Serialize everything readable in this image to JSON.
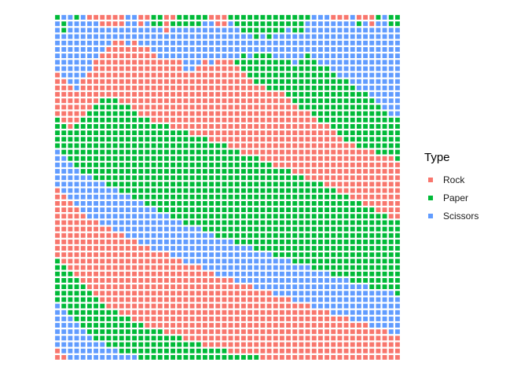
{
  "chart_data": {
    "type": "heatmap",
    "title": "",
    "xlabel": "",
    "ylabel": "",
    "grid": false,
    "legend_position": "right",
    "legend": {
      "title": "Type",
      "entries": [
        {
          "label": "Rock",
          "color": "#F8766D"
        },
        {
          "label": "Paper",
          "color": "#00BA38"
        },
        {
          "label": "Scissors",
          "color": "#619CFF"
        }
      ]
    },
    "rows": 54,
    "cols": 54,
    "cells": [
      "PSSPSRRRRRRSSRRPPRRPPPPPRRRPPPPPPPPPPPPPSSSRRRSRRRPSPP",
      "SPSSSSSRRRRSSRSPPRPPPPPSSRRSPPPPPPPPPPPSSSSSSSSPSRSSPP",
      "SPSSSSSSSSSSSSSSSRSSSSSSSSSSSPPPPPPPSPPSSSSSSSSSSSSSSS",
      "SSSSSSSSSSSSSSSSSSSSSSSSSSSSSSSPSPSSSSSSSSSSSSSSSSSSSS",
      "SSSSSSSSSRRSRSSSSSSSSSSSSSSSSSSSSSSSSSSSSSSSSSSSSSSSSS",
      "SSSSSSSSRRRRRRRSSSSSSSSSSSSSSSSSSSSSSSSSSSSSSSSSSSSSSS",
      "SSSSSSSRRRRRRRRRSSSSSSSSSSSSSPSPPPSSSSSPSSSSSSSSSSSSSS",
      "SSSSSSRRRRRRRRRRRRRRSSSRSRRRPPPPPPPPPSPPPSSSSSSSSSSSSS",
      "SSSSSSRRRRRRRRRRRRRRSSRRRRRRRPPPPPPPPPPPPPPSSSSSSSSSSS",
      "RSSSSRRRRRRRRRRRRRRRRRRRRRRRRRPPPPPPPPPPPPPPSSSSSSSSSS",
      "RRSSRRRRRRRRRRRRRRRRRRRRRRRRRRRPPPPPPPPPPPPPPPSSSSSSSS",
      "RRRSRRRRRRRRRRRRRRRRRRRRRRRRRRRRRPPPPPPPPPPPPPPSSSSSSS",
      "RRRRRRRRRRRRRRRRRRRRRRRRRRRRRRRRRRRRPPPPPPPPPPPPPSSSSS",
      "RRRRRRRPPPRRRRRRRRRRRRRRRRRRRRRRRRRRRPPPPPPPPPPPPPSSSS",
      "RRRRRRPPPPPPRRRRRRRRRRRRRRRRRRRRRRRRRRPPPPPPPPPPPPPSSS",
      "RRRRRPPPPPPPPRRRRRRRRRRRRRRRRRRRRRRRRRRRPPPPPPPPPPPPSS",
      "PRRRPPPPPPPPPPPRRRRRRRRRRRRRRRRRRRRRRRRRRPPPPPPPPPPPPP",
      "PPRPPPPPPPPPPPPPPPRRRRRRRRRRRRRRRRRRRRRRRRRPPPPPPPPPPP",
      "PPPPPPPPPPPPPPPPPPPPPRRRRRRRRRRRRRRRRRRRRRRRPPPPPPPPPP",
      "PPPPPPPPPPPPPPPPPPPPPPPPRRRRRRRRRRRRRRRRRRRRRPPPPPPPPP",
      "PPPPPPPPPPPPPPPPPPPPPPPPPPPRRRRRRRRRRRRRRRRRRRRPPPPPPP",
      "SPPPPPPPPPPPPPPPPPPPPPPPPPPPPRRRRRRRRRRRRRRRRRRRRRPPPP",
      "SSPPPPPPPPPPPPPPPPPPPPPPPPPPPPPPRRRRRRRRRRRRRRRRRRRRRP",
      "SSSPPPPPPPPPPPPPPPPPPPPPPPPPPPPPPPRRRRRRRRRRRRRRRRRRRR",
      "SSSSPPPPPPPPPPPPPPPPPPPPPPPPPPPPPPPPPRRRRRRRRRRRRRRRRR",
      "SSSSSSPPPPPPPPPPPPPPPPPPPPPPPPPPPPPPPPPRRRRRRRRRRRRRRR",
      "SSSSSSSSPPPPPPPPPPPPPPPPPPPPPPPPPPPPPPPPPPRRRRRRRRRRRR",
      "RSSSSSSSSSPPPPPPPPPPPPPPPPPPPPPPPPPPPPPPPPPPRRRRRRRRRR",
      "RRSSSSSSSSSSPPPPPPPPPPPPPPPPPPPPPPPPPPPPPPPPPPRRRRRRRR",
      "RRRSSSSSSSSSSSPPPPPPPPPPPPPPPPPPPPPPPPPPPPPPPPPPRRRRRR",
      "RRRRSSSSSSSSSSSSPPPPPPPPPPPPPPPPPPPPPPPPPPPPPPPPPPRRRR",
      "RRRRRSSSSSSSSSSSSSPPPPPPPPPPPPPPPPPPPPPPPPPPPPPPPPPPRR",
      "RRRRRRRSSSSSSSSSSSSSPPPPPPPPPPPPPPPPPPPPPPPPPPPPPPPPPP",
      "RRRRRRRRRSSSSSSSSSSSSSSPPPPPPPPPPPPPPPPPPPPPPPPPPPPPPP",
      "RRRRRRRRRRRSSSSSSSSSSSSSSPPPPPPPPPPPPPPPPPPPPPPPPPPPPP",
      "RRRRRRRRRRRRRSSSSSSSSSSSSSSSPPPPPPPPPPPPPPPPPPPPPPPPPP",
      "RRRRRRRRRRRRRRRSSSSSSSSSSSSSSSSPPPPPPPPPPPPPPPPPPPPPPP",
      "RRRRRRRRRRRRRRRRRRSSSSSSSSSSSSSSSSPPPPPPPPPPPPPPPPPPPP",
      "PRRRRRRRRRRRRRRRRRRRSSSSSSSSSSSSSSSSSPPPPPPPPPPPPPPPPP",
      "PPRRRRRRRRRRRRRRRRRRRRRSSSSSSSSSSSSSSSSSPPPPPPPPPPPPPP",
      "PPPRRRRRRRRRRRRRRRRRRRRRRSSSSSSSSSSSSSSSSSSPPPPPPPPPPP",
      "PPPPRRRRRRRRRRRRRRRRRRRRRRRRSSSSSSSSSSSSSSSSSSPPPPPPPP",
      "PPPPPRRRRRRRRRRRRRRRRRRRRRRRRRRSSSSSSSSSSSSSSSSSSPPPPP",
      "PPPPPPRRRRRRRRRRRRRRRRRRRRRRRRRRRRSSSSSSSSSSSSSSSSSSSP",
      "PPPPPPPRRRRRRRRRRRRRRRRRRRRRRRRRRRRRRSSSSSSSSSSSSSSSSS",
      "SPPPPPPPRRRRRRRRRRRRRRRRRRRRRRRRRRRRRRRRSSSSSSSSSSSSSS",
      "SSPPPPPPPPRRRRRRRRRRRRRRRRRRRRRRRRRRRRRRRRRSSSSSSSSSSS",
      "SSSPPPPPPPPPRRRRRRRRRRRRRRRRRRRRRRRRRRRRRRRRRRSSSSSSSS",
      "SSSSPPPPPPPPPPRRRRRRRRRRRRRRRRRRRRRRRRRRRRRRRRRRRSSSSS",
      "SSSSSPPPPPPPPPPPPRRRRRRRRRRRRRRRRRRRRRRRRRRRRRRRRRRRSS",
      "SSSSSSPPPPPPPPPPPPPPRRRRRRRRRRRRRRRRRRRRRRRRRRRRRRRRRR",
      "SSSSSSSSPPPPPPPPPPPPPPPRRRRRRRRRRRRRRRRRRRRRRRRRRRRRRR",
      "RSSSSSSSSSPPPPPPPPPPPPPPPPPRRRRRRRRRRRRRRRRRRRRRRRRRRR",
      "RRSSSSSSSSSSSPPPPPPPPPPPPPPPPPPPRRRRRRRRRRRRRRRRRRRRRR"
    ],
    "cell_codes": {
      "R": "Rock",
      "P": "Paper",
      "S": "Scissors"
    }
  }
}
